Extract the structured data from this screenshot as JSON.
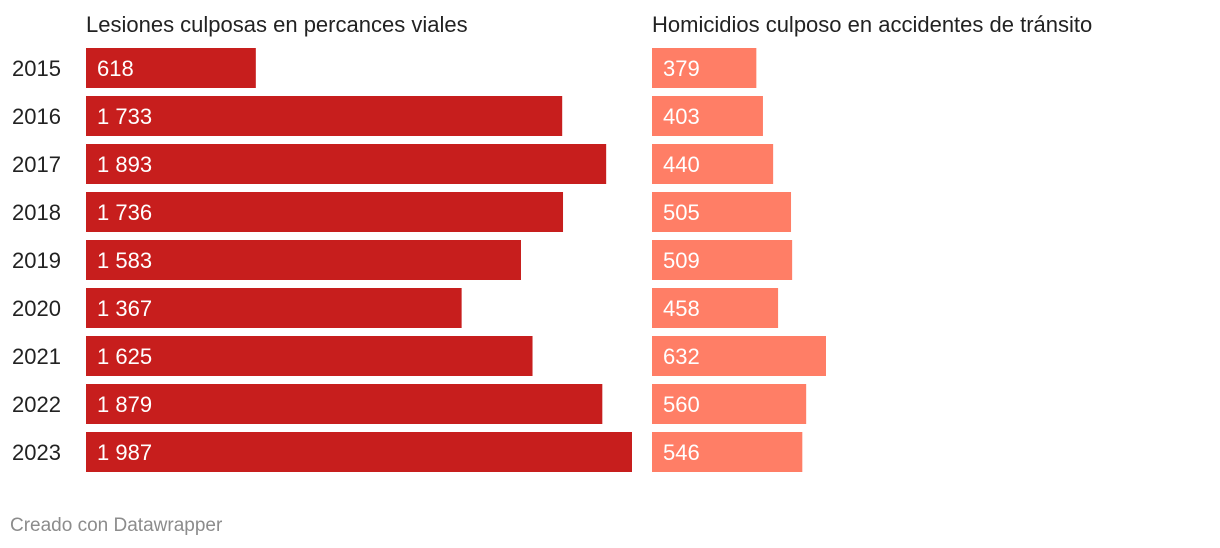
{
  "chart_data": {
    "type": "bar",
    "orientation": "horizontal",
    "categories": [
      "2015",
      "2016",
      "2017",
      "2018",
      "2019",
      "2020",
      "2021",
      "2022",
      "2023"
    ],
    "series": [
      {
        "name": "Lesiones culposas en percances viales",
        "values": [
          618,
          1733,
          1893,
          1736,
          1583,
          1367,
          1625,
          1879,
          1987
        ],
        "labels": [
          "618",
          "1 733",
          "1 893",
          "1 736",
          "1 583",
          "1 367",
          "1 625",
          "1 879",
          "1 987"
        ],
        "color": "#c71e1d"
      },
      {
        "name": "Homicidios culposo en accidentes de tránsito",
        "values": [
          379,
          403,
          440,
          505,
          509,
          458,
          632,
          560,
          546
        ],
        "labels": [
          "379",
          "403",
          "440",
          "505",
          "509",
          "458",
          "632",
          "560",
          "546"
        ],
        "color": "#ff7e66"
      }
    ],
    "grid": false,
    "legend": "none"
  },
  "footer": {
    "credit": "Creado con Datawrapper"
  }
}
